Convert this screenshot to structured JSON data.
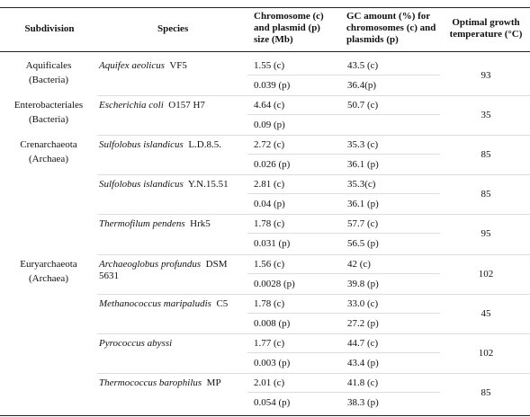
{
  "table": {
    "header": [
      "Subdivision",
      "Species",
      "Chromosome (c) and plasmid (p) size (Mb)",
      "GC amount (%) for chromosomes (c) and plasmids (p)",
      "Optimal growth temperature (°C)"
    ],
    "rows": [
      {
        "subdivision": [
          "Aquificales",
          "(Bacteria)"
        ],
        "species": "Aquifex aeolicus",
        "strain": "VF5",
        "size": [
          "1.55 (c)",
          "0.039 (p)"
        ],
        "gc": [
          "43.5 (c)",
          "36.4(p)"
        ],
        "temp": 93
      },
      {
        "subdivision": [
          "Enterobacteriales",
          "(Bacteria)"
        ],
        "species": "Escherichia coli",
        "strain": "O157 H7",
        "size": [
          "4.64 (c)",
          "0.09 (p)"
        ],
        "gc": [
          "50.7 (c)"
        ],
        "temp": 35
      },
      {
        "subdivision": [
          "Crenarchaeota",
          "(Archaea)"
        ],
        "species": "Sulfolobus islandicus",
        "strain": "L.D.8.5.",
        "size": [
          "2.72 (c)",
          "0.026 (p)"
        ],
        "gc": [
          "35.3 (c)",
          "36.1 (p)"
        ],
        "temp": 85
      },
      {
        "species": "Sulfolobus islandicus",
        "strain": "Y.N.15.51",
        "size": [
          "2.81 (c)",
          "0.04 (p)"
        ],
        "gc": [
          "35.3(c)",
          "36.1 (p)"
        ],
        "temp": 85
      },
      {
        "species": "Thermofilum pendens",
        "strain": "Hrk5",
        "size": [
          "1.78 (c)",
          "0.031 (p)"
        ],
        "gc": [
          "57.7 (c)",
          "56.5 (p)"
        ],
        "temp": 95
      },
      {
        "subdivision": [
          "Euryarchaeota",
          "(Archaea)"
        ],
        "species": "Archaeoglobus profundus",
        "strain": "DSM 5631",
        "size": [
          "1.56 (c)",
          "0.0028 (p)"
        ],
        "gc": [
          "42 (c)",
          "39.8 (p)"
        ],
        "temp": 102
      },
      {
        "species": "Methanococcus maripaludis",
        "strain": "C5",
        "size": [
          "1.78 (c)",
          "0.008 (p)"
        ],
        "gc": [
          "33.0 (c)",
          "27.2 (p)"
        ],
        "temp": 45
      },
      {
        "species": "Pyrococcus abyssi",
        "size": [
          "1.77 (c)",
          "0.003 (p)"
        ],
        "gc": [
          "44.7 (c)",
          "43.4 (p)"
        ],
        "temp": 102
      },
      {
        "species": "Thermococcus barophilus",
        "strain": "MP",
        "size": [
          "2.01 (c)",
          "0.054 (p)"
        ],
        "gc": [
          "41.8 (c)",
          "38.3 (p)"
        ],
        "temp": 85
      }
    ]
  }
}
